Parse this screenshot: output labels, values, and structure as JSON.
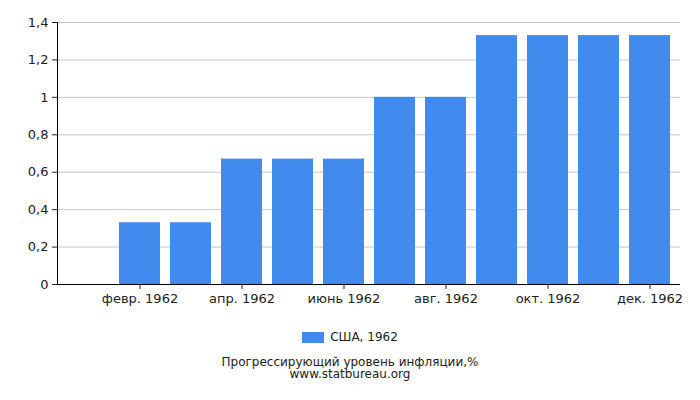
{
  "chart_data": {
    "type": "bar",
    "title": "Прогрессирующий уровень инфляции,%",
    "subtitle": "www.statbureau.org",
    "categories": [
      null,
      "февр. 1962",
      null,
      "апр. 1962",
      null,
      "июнь 1962",
      null,
      "авг. 1962",
      null,
      "окт. 1962",
      null,
      "дек. 1962"
    ],
    "series": [
      {
        "name": "США, 1962",
        "color": "#418bee",
        "values": [
          0,
          0.33,
          0.33,
          0.67,
          0.67,
          0.67,
          1.0,
          1.0,
          1.33,
          1.33,
          1.33,
          1.33
        ]
      }
    ],
    "ylim": [
      0,
      1.4
    ],
    "yticks": [
      0,
      {
        "value": 0.2,
        "label": "0,2"
      },
      {
        "value": 0.4,
        "label": "0,4"
      },
      {
        "value": 0.6,
        "label": "0,6"
      },
      {
        "value": 0.8,
        "label": "0,8"
      },
      1,
      {
        "value": 1.2,
        "label": "1,2"
      },
      {
        "value": 1.4,
        "label": "1,4"
      }
    ],
    "grid": true,
    "legend": "bottom"
  }
}
